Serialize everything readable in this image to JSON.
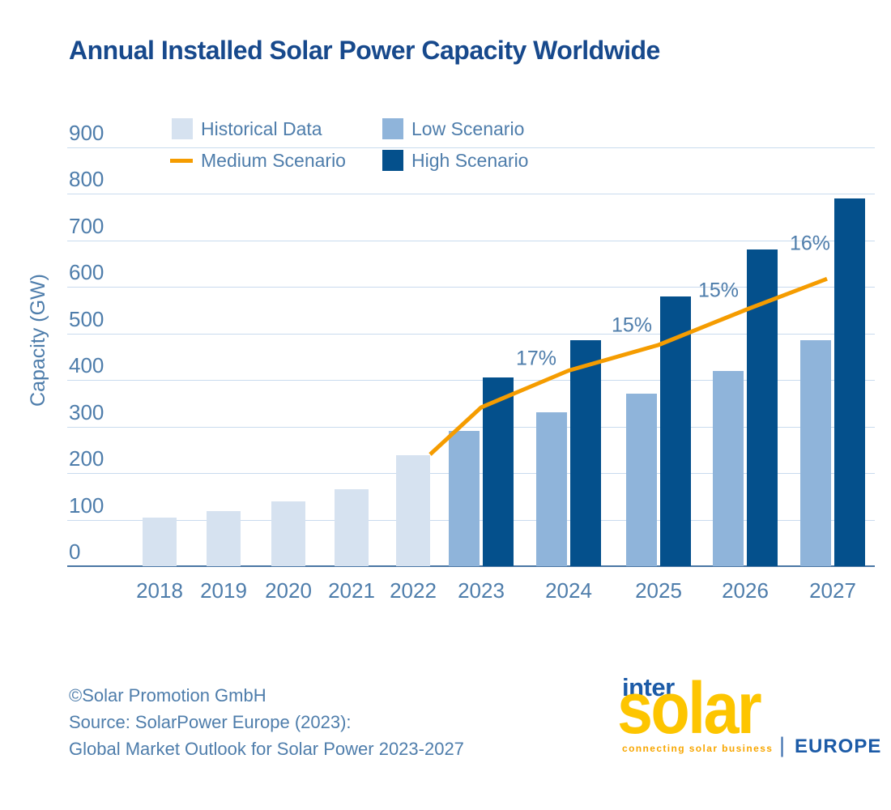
{
  "title": "Annual Installed Solar Power Capacity Worldwide",
  "legend": {
    "items": [
      {
        "label": "Historical Data",
        "swatch": "square",
        "color": "#d6e2f0"
      },
      {
        "label": "Low Scenario",
        "swatch": "square",
        "color": "#8fb4da"
      },
      {
        "label": "Medium Scenario",
        "swatch": "line",
        "color": "#f59c00"
      },
      {
        "label": "High Scenario",
        "swatch": "square",
        "color": "#04508c"
      }
    ]
  },
  "chart_data": {
    "type": "bar",
    "title": "Annual Installed Solar Power Capacity Worldwide",
    "xlabel": "",
    "ylabel": "Capacity (GW)",
    "ylim": [
      0,
      900
    ],
    "ytick_step": 100,
    "yticks": [
      0,
      100,
      200,
      300,
      400,
      500,
      600,
      700,
      800,
      900
    ],
    "grid": true,
    "legend_position": "top-left",
    "categories": [
      "2018",
      "2019",
      "2020",
      "2021",
      "2022",
      "2023",
      "2024",
      "2025",
      "2026",
      "2027"
    ],
    "series": [
      {
        "name": "Historical Data",
        "type": "bar",
        "color": "#d6e2f0",
        "values": [
          104,
          118,
          139,
          166,
          239,
          null,
          null,
          null,
          null,
          null
        ]
      },
      {
        "name": "Low Scenario",
        "type": "bar",
        "color": "#8fb4da",
        "values": [
          null,
          null,
          null,
          null,
          null,
          290,
          330,
          370,
          420,
          485
        ]
      },
      {
        "name": "High Scenario",
        "type": "bar",
        "color": "#04508c",
        "values": [
          null,
          null,
          null,
          null,
          null,
          405,
          485,
          580,
          680,
          790
        ]
      },
      {
        "name": "Medium Scenario",
        "type": "line",
        "color": "#f59c00",
        "categories": [
          "2022",
          "2023",
          "2024",
          "2025",
          "2026",
          "2027"
        ],
        "values": [
          240,
          341,
          420,
          475,
          550,
          617
        ]
      }
    ],
    "annotations": [
      {
        "text": "17%",
        "category": "2024"
      },
      {
        "text": "15%",
        "category": "2025"
      },
      {
        "text": "15%",
        "category": "2026"
      },
      {
        "text": "16%",
        "category": "2027"
      }
    ]
  },
  "footer": {
    "line1": "©Solar Promotion GmbH",
    "line2": "Source: SolarPower Europe (2023):",
    "line3": "Global Market Outlook for Solar Power 2023-2027"
  },
  "logo": {
    "inter": "inter",
    "solar": "solar",
    "tagline": "connecting solar business",
    "divider": "|",
    "region": "EUROPE"
  },
  "colors": {
    "title": "#17498c",
    "axis_text": "#4e7dab",
    "gridline": "#c9dbee",
    "baseline": "#4a76a4",
    "historical_bar": "#d6e2f0",
    "low_bar": "#8fb4da",
    "high_bar": "#04508c",
    "medium_line": "#f59c00",
    "logo_blue": "#1c5ba7",
    "logo_yellow": "#fdc500",
    "logo_orange": "#f7a600"
  }
}
